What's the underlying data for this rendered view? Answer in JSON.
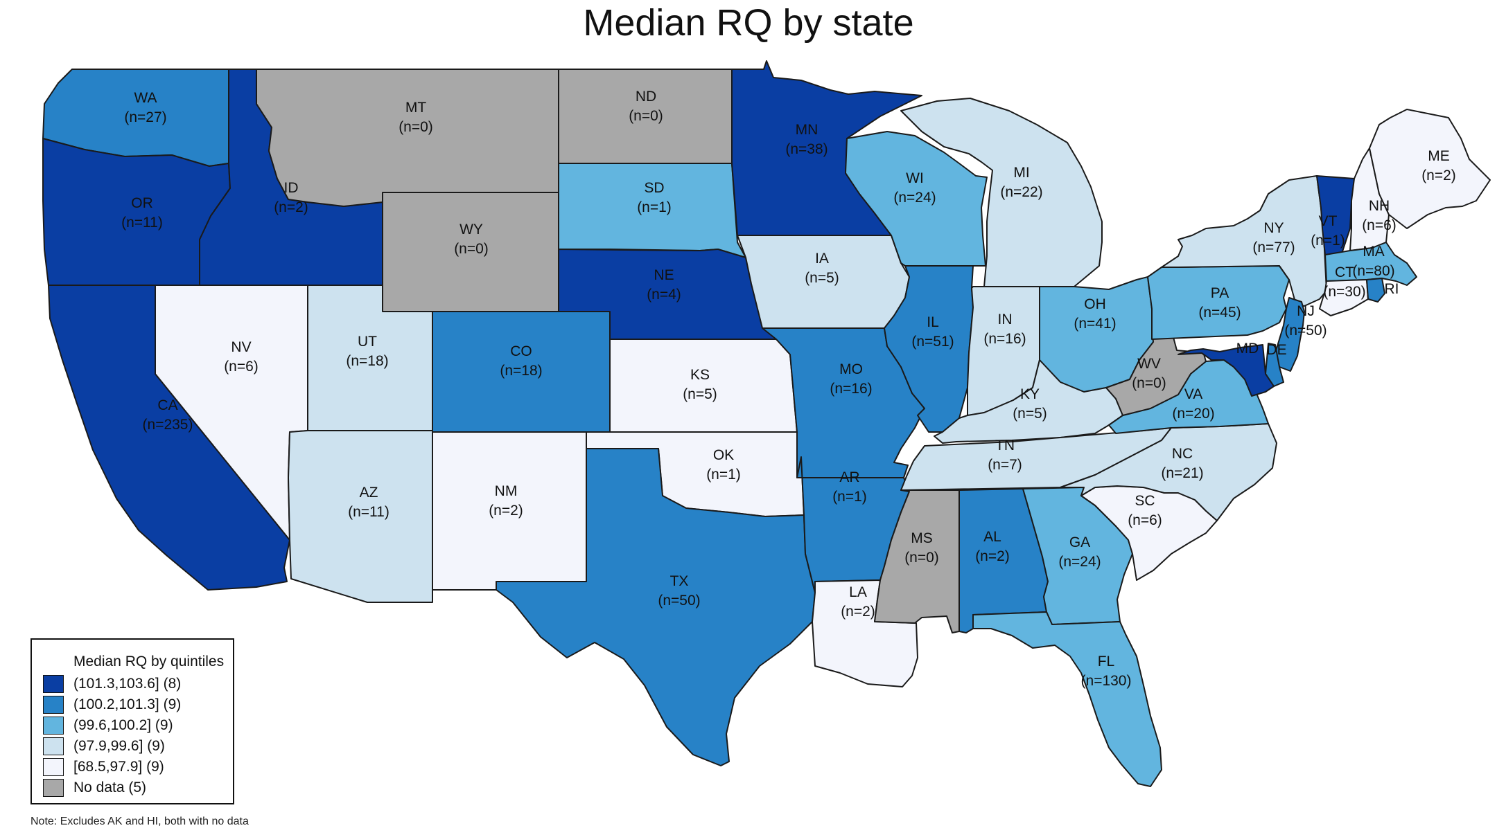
{
  "title": "Median RQ by state",
  "note": "Note: Excludes AK and HI, both with no data",
  "colors": {
    "q5": "#0a3ea3",
    "q4": "#2782c7",
    "q3": "#62b5df",
    "q2": "#cde2ef",
    "q1": "#f3f5fc",
    "nodata": "#a8a8a8",
    "border": "#1a1a1a"
  },
  "legend": {
    "title": "Median RQ by quintiles",
    "items": [
      {
        "label": "(101.3,103.6] (8)",
        "color": "#0a3ea3"
      },
      {
        "label": "(100.2,101.3] (9)",
        "color": "#2782c7"
      },
      {
        "label": "(99.6,100.2] (9)",
        "color": "#62b5df"
      },
      {
        "label": "(97.9,99.6] (9)",
        "color": "#cde2ef"
      },
      {
        "label": "[68.5,97.9] (9)",
        "color": "#f3f5fc"
      },
      {
        "label": "No data (5)",
        "color": "#a8a8a8"
      }
    ]
  },
  "states": [
    {
      "abbr": "WA",
      "count": "(n=27)",
      "bin": "q4"
    },
    {
      "abbr": "OR",
      "count": "(n=11)",
      "bin": "q5"
    },
    {
      "abbr": "CA",
      "count": "(n=235)",
      "bin": "q5"
    },
    {
      "abbr": "ID",
      "count": "(n=2)",
      "bin": "q5"
    },
    {
      "abbr": "NV",
      "count": "(n=6)",
      "bin": "q1"
    },
    {
      "abbr": "MT",
      "count": "(n=0)",
      "bin": "nodata"
    },
    {
      "abbr": "WY",
      "count": "(n=0)",
      "bin": "nodata"
    },
    {
      "abbr": "UT",
      "count": "(n=18)",
      "bin": "q2"
    },
    {
      "abbr": "AZ",
      "count": "(n=11)",
      "bin": "q2"
    },
    {
      "abbr": "CO",
      "count": "(n=18)",
      "bin": "q4"
    },
    {
      "abbr": "NM",
      "count": "(n=2)",
      "bin": "q1"
    },
    {
      "abbr": "ND",
      "count": "(n=0)",
      "bin": "nodata"
    },
    {
      "abbr": "SD",
      "count": "(n=1)",
      "bin": "q3"
    },
    {
      "abbr": "NE",
      "count": "(n=4)",
      "bin": "q5"
    },
    {
      "abbr": "KS",
      "count": "(n=5)",
      "bin": "q1"
    },
    {
      "abbr": "OK",
      "count": "(n=1)",
      "bin": "q1"
    },
    {
      "abbr": "TX",
      "count": "(n=50)",
      "bin": "q4"
    },
    {
      "abbr": "MN",
      "count": "(n=38)",
      "bin": "q5"
    },
    {
      "abbr": "IA",
      "count": "(n=5)",
      "bin": "q2"
    },
    {
      "abbr": "MO",
      "count": "(n=16)",
      "bin": "q4"
    },
    {
      "abbr": "AR",
      "count": "(n=1)",
      "bin": "q4"
    },
    {
      "abbr": "LA",
      "count": "(n=2)",
      "bin": "q1"
    },
    {
      "abbr": "WI",
      "count": "(n=24)",
      "bin": "q3"
    },
    {
      "abbr": "IL",
      "count": "(n=51)",
      "bin": "q4"
    },
    {
      "abbr": "MI",
      "count": "(n=22)",
      "bin": "q2"
    },
    {
      "abbr": "IN",
      "count": "(n=16)",
      "bin": "q2"
    },
    {
      "abbr": "OH",
      "count": "(n=41)",
      "bin": "q3"
    },
    {
      "abbr": "KY",
      "count": "(n=5)",
      "bin": "q2"
    },
    {
      "abbr": "TN",
      "count": "(n=7)",
      "bin": "q2"
    },
    {
      "abbr": "MS",
      "count": "(n=0)",
      "bin": "nodata"
    },
    {
      "abbr": "AL",
      "count": "(n=2)",
      "bin": "q4"
    },
    {
      "abbr": "GA",
      "count": "(n=24)",
      "bin": "q3"
    },
    {
      "abbr": "FL",
      "count": "(n=130)",
      "bin": "q3"
    },
    {
      "abbr": "SC",
      "count": "(n=6)",
      "bin": "q1"
    },
    {
      "abbr": "NC",
      "count": "(n=21)",
      "bin": "q2"
    },
    {
      "abbr": "VA",
      "count": "(n=20)",
      "bin": "q3"
    },
    {
      "abbr": "WV",
      "count": "(n=0)",
      "bin": "nodata"
    },
    {
      "abbr": "PA",
      "count": "(n=45)",
      "bin": "q3"
    },
    {
      "abbr": "NY",
      "count": "(n=77)",
      "bin": "q2"
    },
    {
      "abbr": "NJ",
      "count": "(n=50)",
      "bin": "q4"
    },
    {
      "abbr": "DE",
      "count": "",
      "bin": "q4"
    },
    {
      "abbr": "MD",
      "count": "",
      "bin": "q5"
    },
    {
      "abbr": "VT",
      "count": "(n=1)",
      "bin": "q5"
    },
    {
      "abbr": "NH",
      "count": "(n=6)",
      "bin": "q1"
    },
    {
      "abbr": "ME",
      "count": "(n=2)",
      "bin": "q1"
    },
    {
      "abbr": "MA",
      "count": "(n=80)",
      "bin": "q3"
    },
    {
      "abbr": "CT",
      "count": "(n=30)",
      "bin": "q1"
    },
    {
      "abbr": "RI",
      "count": "",
      "bin": "q4"
    }
  ]
}
